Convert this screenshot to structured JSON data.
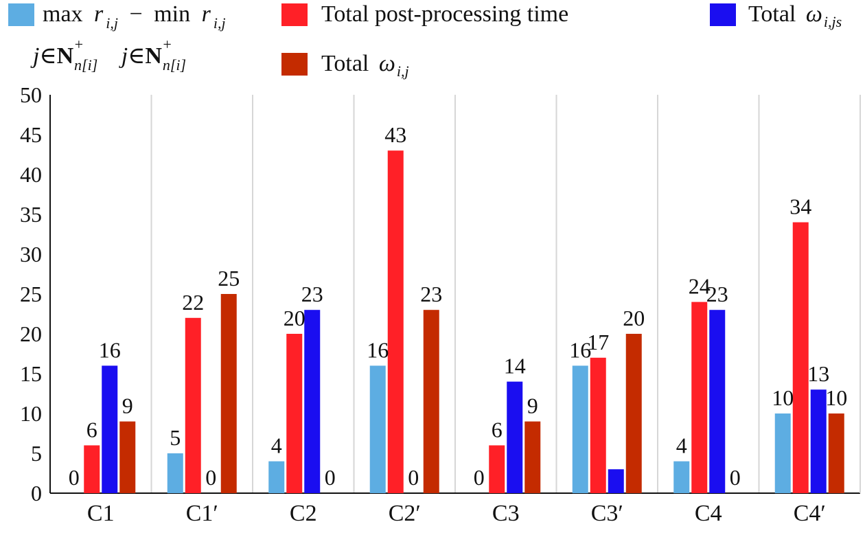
{
  "chart_data": {
    "type": "bar",
    "categories": [
      "C1",
      "C1′",
      "C2",
      "C2′",
      "C3",
      "C3′",
      "C4",
      "C4′"
    ],
    "series": [
      {
        "name": "max r i,j − min r i,j",
        "color": "#5dade2",
        "values": [
          0,
          5,
          4,
          16,
          0,
          16,
          4,
          10
        ],
        "labels": [
          "0",
          "5",
          "4",
          "16",
          "0",
          "16",
          "4",
          "10"
        ]
      },
      {
        "name": "Total post-processing time",
        "color": "#ff2027",
        "values": [
          6,
          22,
          20,
          43,
          6,
          17,
          24,
          34
        ],
        "labels": [
          "6",
          "22",
          "20",
          "43",
          "6",
          "17",
          "24",
          "34"
        ]
      },
      {
        "name": "Total ω i,js",
        "color": "#1a0ef0",
        "values": [
          16,
          0,
          23,
          0,
          14,
          3,
          23,
          13
        ],
        "labels": [
          "16",
          "0",
          "23",
          "0",
          "14",
          "",
          "23",
          "13"
        ]
      },
      {
        "name": "Total ω i,j",
        "color": "#c42b00",
        "values": [
          9,
          25,
          0,
          23,
          9,
          20,
          0,
          10
        ],
        "labels": [
          "9",
          "25",
          "0",
          "23",
          "9",
          "20",
          "0",
          "10"
        ]
      }
    ],
    "y_ticks": [
      "0",
      "5",
      "10",
      "15",
      "20",
      "25",
      "30",
      "35",
      "40",
      "45",
      "50"
    ],
    "ylim": [
      0,
      50
    ],
    "grid": "vertical",
    "legend_position": "top"
  },
  "legend": {
    "item1": {
      "text_a": "max",
      "var_a": "r",
      "sub_a": "i,j",
      "minus": "−",
      "text_b": "min",
      "var_b": "r",
      "sub_b": "i,j",
      "under_a_j": "j",
      "under_a_in": "∈",
      "under_a_N": "N",
      "under_a_sup": "+",
      "under_a_sub": "n[i]",
      "under_b_j": "j",
      "under_b_in": "∈",
      "under_b_N": "N",
      "under_b_sup": "+",
      "under_b_sub": "n[i]"
    },
    "item2": {
      "text": "Total post-processing time"
    },
    "item3": {
      "text": "Total",
      "var": "ω",
      "sub": "i,js"
    },
    "item4": {
      "text": "Total",
      "var": "ω",
      "sub": "i,j"
    }
  }
}
